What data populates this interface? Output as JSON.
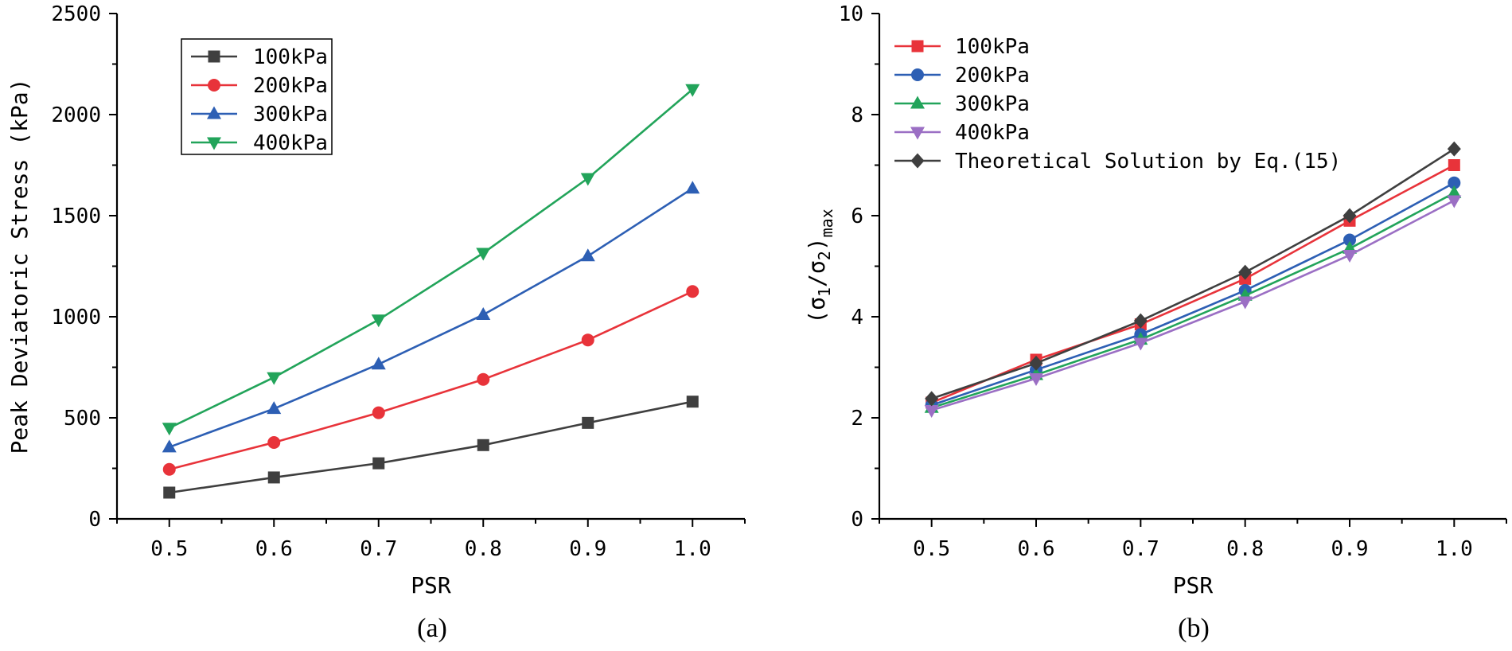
{
  "chart_data": [
    {
      "type": "line",
      "caption": "(a)",
      "xlabel": "PSR",
      "ylabel": "Peak Deviatoric Stress (kPa)",
      "xlim": [
        0.45,
        1.05
      ],
      "ylim": [
        0,
        2500
      ],
      "x": [
        0.5,
        0.6,
        0.7,
        0.8,
        0.9,
        1.0
      ],
      "x_tick_labels": [
        "0.5",
        "0.6",
        "0.7",
        "0.8",
        "0.9",
        "1.0"
      ],
      "y_ticks": [
        0,
        500,
        1000,
        1500,
        2000,
        2500
      ],
      "y_tick_labels": [
        "0",
        "500",
        "1000",
        "1500",
        "2000",
        "2500"
      ],
      "legend_position": "top-left",
      "series": [
        {
          "name": "100kPa",
          "color": "#3f3f3f",
          "marker": "square",
          "values": [
            130,
            205,
            275,
            365,
            475,
            580
          ]
        },
        {
          "name": "200kPa",
          "color": "#e8333a",
          "marker": "circle",
          "values": [
            245,
            378,
            525,
            690,
            885,
            1125
          ]
        },
        {
          "name": "300kPa",
          "color": "#2d5fb4",
          "marker": "triangle-up",
          "values": [
            355,
            545,
            765,
            1010,
            1300,
            1635
          ]
        },
        {
          "name": "400kPa",
          "color": "#22a45a",
          "marker": "triangle-down",
          "values": [
            450,
            700,
            985,
            1315,
            1685,
            2125
          ]
        }
      ]
    },
    {
      "type": "line",
      "caption": "(b)",
      "xlabel": "PSR",
      "ylabel_parts": {
        "open": "(σ",
        "sub1": "1",
        "slash": "/σ",
        "sub2": "2",
        "close": ")",
        "subscript": "max"
      },
      "xlim": [
        0.45,
        1.05
      ],
      "ylim": [
        0,
        10
      ],
      "x": [
        0.5,
        0.6,
        0.7,
        0.8,
        0.9,
        1.0
      ],
      "x_tick_labels": [
        "0.5",
        "0.6",
        "0.7",
        "0.8",
        "0.9",
        "1.0"
      ],
      "y_ticks": [
        0,
        2,
        4,
        6,
        8,
        10
      ],
      "y_tick_labels": [
        "0",
        "2",
        "4",
        "6",
        "8",
        "10"
      ],
      "legend_position": "top-left",
      "series": [
        {
          "name": "100kPa",
          "color": "#e8333a",
          "marker": "square",
          "values": [
            2.3,
            3.15,
            3.85,
            4.75,
            5.9,
            7.0
          ]
        },
        {
          "name": "200kPa",
          "color": "#2d5fb4",
          "marker": "circle",
          "values": [
            2.25,
            2.95,
            3.65,
            4.52,
            5.52,
            6.65
          ]
        },
        {
          "name": "300kPa",
          "color": "#22a45a",
          "marker": "triangle-up",
          "values": [
            2.2,
            2.85,
            3.55,
            4.42,
            5.35,
            6.45
          ]
        },
        {
          "name": "400kPa",
          "color": "#9b6fc4",
          "marker": "triangle-down",
          "values": [
            2.15,
            2.78,
            3.48,
            4.3,
            5.22,
            6.3
          ]
        },
        {
          "name": "Theoretical Solution by Eq.(15)",
          "color": "#3f3f3f",
          "marker": "diamond",
          "values": [
            2.38,
            3.08,
            3.92,
            4.88,
            6.0,
            7.32
          ]
        }
      ]
    }
  ]
}
